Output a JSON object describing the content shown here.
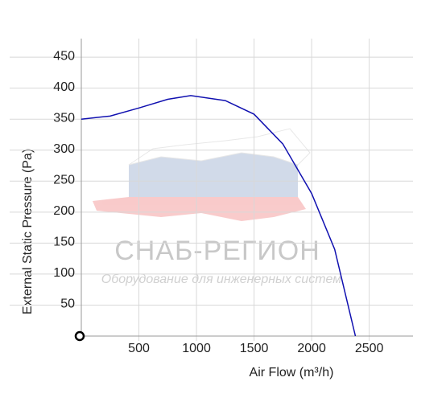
{
  "chart_data": {
    "type": "line",
    "x_label": "Air Flow (m³/h)",
    "y_label": "External Static Pressure (Pa)",
    "watermark": "СНАБ-РЕГИОН",
    "watermark_subtitle": "Оборудование для инженерных систем",
    "x": [
      0,
      250,
      500,
      750,
      950,
      1250,
      1500,
      1750,
      2000,
      2200,
      2380
    ],
    "series": [
      {
        "color": "#1010b0",
        "values": [
          350,
          355,
          368,
          382,
          388,
          380,
          358,
          310,
          230,
          140,
          0
        ]
      }
    ],
    "xlim": [
      0,
      2880
    ],
    "xticks": [
      500,
      1000,
      1500,
      2000,
      2500
    ],
    "ylim": [
      0,
      480
    ],
    "yticks": [
      50,
      100,
      150,
      200,
      250,
      300,
      350,
      400,
      450
    ],
    "grid": true
  }
}
